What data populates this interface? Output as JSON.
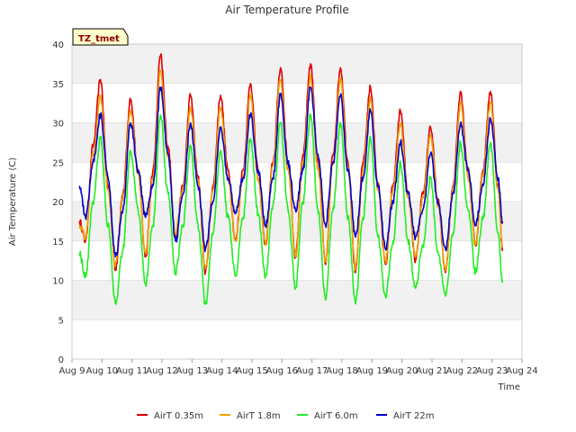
{
  "chart_data": {
    "type": "line",
    "title": "Air Temperature Profile",
    "xlabel": "Time",
    "ylabel": "Air Temperature (C)",
    "badge": "TZ_tmet",
    "ylim": [
      0,
      40
    ],
    "yticks": [
      0,
      5,
      10,
      15,
      20,
      25,
      30,
      35,
      40
    ],
    "xlim": [
      9,
      24
    ],
    "xticks": [
      9,
      10,
      11,
      12,
      13,
      14,
      15,
      16,
      17,
      18,
      19,
      20,
      21,
      22,
      23,
      24
    ],
    "xtick_labels": [
      "Aug 9",
      "Aug 10",
      "Aug 11",
      "Aug 12",
      "Aug 13",
      "Aug 14",
      "Aug 15",
      "Aug 16",
      "Aug 17",
      "Aug 18",
      "Aug 19",
      "Aug 20",
      "Aug 21",
      "Aug 22",
      "Aug 23",
      "Aug 24"
    ],
    "x_unit": "day of August",
    "legend_position": "bottom",
    "alternating_bands": true,
    "series": [
      {
        "name": "AirT 0.35m",
        "color": "#dd0000",
        "x": [
          9.25,
          9.45,
          9.7,
          9.95,
          10.2,
          10.45,
          10.7,
          10.95,
          11.2,
          11.45,
          11.7,
          11.95,
          12.2,
          12.45,
          12.7,
          12.95,
          13.2,
          13.45,
          13.7,
          13.95,
          14.2,
          14.45,
          14.7,
          14.95,
          15.2,
          15.45,
          15.7,
          15.95,
          16.2,
          16.45,
          16.7,
          16.95,
          17.2,
          17.45,
          17.7,
          17.95,
          18.2,
          18.45,
          18.7,
          18.95,
          19.2,
          19.45,
          19.7,
          19.95,
          20.2,
          20.45,
          20.7,
          20.95,
          21.2,
          21.45,
          21.7,
          21.95,
          22.2,
          22.45,
          22.7,
          22.95,
          23.2,
          23.35
        ],
        "y": [
          17.5,
          15.0,
          27.0,
          35.5,
          22.0,
          11.5,
          21.0,
          33.0,
          24.0,
          13.0,
          24.0,
          38.5,
          27.0,
          15.5,
          22.0,
          33.5,
          23.0,
          11.0,
          22.0,
          33.5,
          24.0,
          15.0,
          24.0,
          35.0,
          24.0,
          14.5,
          25.0,
          37.0,
          25.0,
          13.0,
          26.0,
          37.5,
          25.0,
          12.0,
          26.0,
          37.0,
          25.0,
          11.0,
          25.0,
          34.5,
          22.0,
          12.0,
          22.0,
          31.5,
          21.0,
          12.5,
          21.0,
          29.5,
          20.0,
          11.0,
          22.0,
          34.0,
          24.0,
          14.5,
          24.0,
          34.0,
          22.0,
          14.0
        ]
      },
      {
        "name": "AirT 1.8m",
        "color": "#f0a000",
        "x": [
          9.25,
          9.45,
          9.7,
          9.95,
          10.2,
          10.45,
          10.7,
          10.95,
          11.2,
          11.45,
          11.7,
          11.95,
          12.2,
          12.45,
          12.7,
          12.95,
          13.2,
          13.45,
          13.7,
          13.95,
          14.2,
          14.45,
          14.7,
          14.95,
          15.2,
          15.45,
          15.7,
          15.95,
          16.2,
          16.45,
          16.7,
          16.95,
          17.2,
          17.45,
          17.7,
          17.95,
          18.2,
          18.45,
          18.7,
          18.95,
          19.2,
          19.45,
          19.7,
          19.95,
          20.2,
          20.45,
          20.7,
          20.95,
          21.2,
          21.45,
          21.7,
          21.95,
          22.2,
          22.45,
          22.7,
          22.95,
          23.2,
          23.35
        ],
        "y": [
          17.0,
          15.5,
          26.0,
          33.5,
          21.5,
          12.0,
          20.5,
          31.5,
          23.5,
          13.5,
          23.0,
          36.5,
          26.0,
          16.0,
          21.5,
          32.0,
          22.5,
          11.5,
          21.5,
          32.0,
          23.0,
          15.0,
          23.0,
          33.5,
          23.0,
          14.5,
          24.5,
          35.5,
          24.0,
          13.0,
          25.0,
          36.0,
          24.0,
          12.5,
          25.0,
          35.5,
          24.0,
          11.5,
          24.0,
          33.0,
          21.5,
          12.5,
          21.5,
          30.0,
          20.5,
          13.0,
          20.5,
          28.5,
          19.5,
          11.5,
          21.5,
          32.5,
          23.0,
          14.5,
          23.5,
          32.5,
          21.5,
          14.5
        ]
      },
      {
        "name": "AirT 6.0m",
        "color": "#22ee22",
        "x": [
          9.25,
          9.45,
          9.7,
          9.95,
          10.2,
          10.45,
          10.7,
          10.95,
          11.2,
          11.45,
          11.7,
          11.95,
          12.2,
          12.45,
          12.7,
          12.95,
          13.2,
          13.45,
          13.7,
          13.95,
          14.2,
          14.45,
          14.7,
          14.95,
          15.2,
          15.45,
          15.7,
          15.95,
          16.2,
          16.45,
          16.7,
          16.95,
          17.2,
          17.45,
          17.7,
          17.95,
          18.2,
          18.45,
          18.7,
          18.95,
          19.2,
          19.45,
          19.7,
          19.95,
          20.2,
          20.45,
          20.7,
          20.95,
          21.2,
          21.45,
          21.7,
          21.95,
          22.2,
          22.45,
          22.7,
          22.95,
          23.2,
          23.35
        ],
        "y": [
          13.5,
          10.5,
          20.0,
          28.0,
          17.0,
          7.0,
          14.0,
          26.5,
          19.0,
          9.5,
          17.0,
          31.0,
          21.0,
          11.0,
          17.0,
          27.0,
          17.0,
          7.0,
          16.0,
          26.5,
          18.0,
          10.5,
          18.0,
          28.0,
          18.5,
          10.5,
          19.5,
          30.0,
          19.0,
          9.0,
          20.0,
          31.0,
          19.0,
          7.5,
          19.0,
          30.0,
          18.0,
          7.0,
          18.0,
          28.0,
          15.5,
          8.0,
          15.0,
          25.0,
          15.0,
          9.0,
          14.5,
          23.0,
          13.5,
          8.0,
          16.0,
          27.5,
          19.0,
          11.0,
          18.0,
          27.5,
          16.0,
          10.0
        ]
      },
      {
        "name": "AirT 22m",
        "color": "#0000cc",
        "x": [
          9.25,
          9.45,
          9.7,
          9.95,
          10.2,
          10.45,
          10.7,
          10.95,
          11.2,
          11.45,
          11.7,
          11.95,
          12.2,
          12.45,
          12.7,
          12.95,
          13.2,
          13.45,
          13.7,
          13.95,
          14.2,
          14.45,
          14.7,
          14.95,
          15.2,
          15.45,
          15.7,
          15.95,
          16.2,
          16.45,
          16.7,
          16.95,
          17.2,
          17.45,
          17.7,
          17.95,
          18.2,
          18.45,
          18.7,
          18.95,
          19.2,
          19.45,
          19.7,
          19.95,
          20.2,
          20.45,
          20.7,
          20.95,
          21.2,
          21.45,
          21.7,
          21.95,
          22.2,
          22.45,
          22.7,
          22.95,
          23.2,
          23.35
        ],
        "y": [
          22.0,
          18.0,
          25.0,
          31.0,
          23.0,
          13.0,
          19.0,
          30.0,
          24.0,
          18.0,
          22.0,
          34.5,
          26.0,
          15.0,
          21.0,
          30.0,
          22.0,
          14.0,
          20.0,
          29.5,
          23.0,
          18.5,
          23.0,
          31.0,
          24.0,
          17.0,
          23.0,
          33.5,
          25.0,
          19.0,
          24.0,
          34.5,
          26.0,
          17.0,
          25.0,
          33.5,
          24.0,
          15.5,
          23.0,
          31.5,
          22.0,
          14.0,
          20.0,
          27.5,
          21.0,
          15.5,
          19.0,
          26.0,
          20.0,
          14.0,
          21.0,
          30.0,
          24.0,
          17.0,
          22.0,
          30.5,
          23.0,
          17.5
        ]
      }
    ]
  }
}
